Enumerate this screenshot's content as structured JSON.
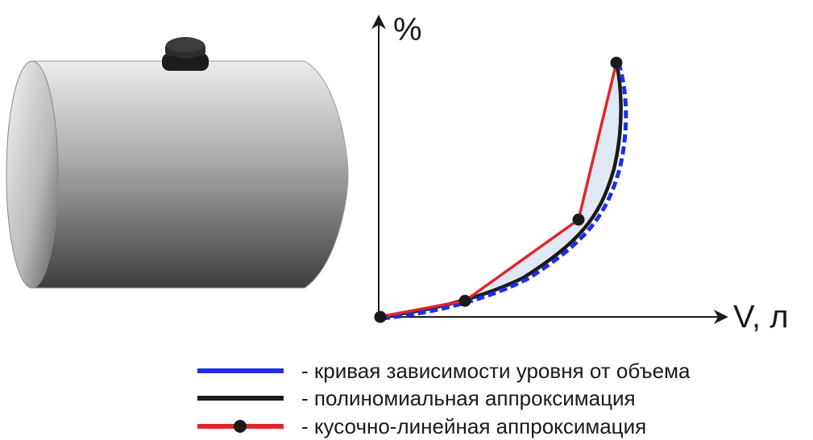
{
  "colors": {
    "level_curve": "#1e2fe6",
    "polynomial": "#1a1a1a",
    "piecewise": "#e0262b",
    "fill_between": "#dbe5f2",
    "tank_light": "#e6e6e6",
    "tank_dark": "#4a4a4a",
    "cap": "#2a2a2a"
  },
  "icons": {
    "tank": "horizontal-cylinder-tank-icon",
    "cap": "tank-filler-cap-icon"
  },
  "chart": {
    "y_axis_label": "%",
    "x_axis_label": "V, л"
  },
  "chart_data": {
    "type": "line",
    "xlabel": "V, л",
    "ylabel": "%",
    "series": [
      {
        "name": "кривая зависимости уровня от объема",
        "style": "dashed",
        "color": "#1e2fe6"
      },
      {
        "name": "полиномиальная аппроксимация",
        "style": "solid",
        "color": "#1a1a1a"
      },
      {
        "name": "кусочно-линейная аппроксимация",
        "style": "solid-with-markers",
        "color": "#e0262b"
      }
    ]
  },
  "legend": [
    {
      "text": "- кривая зависимости уровня от объема",
      "marker": false,
      "color": "#1e2fe6"
    },
    {
      "text": "- полиномиальная аппроксимация",
      "marker": false,
      "color": "#1a1a1a"
    },
    {
      "text": "- кусочно-линейная аппроксимация",
      "marker": true,
      "color": "#e0262b"
    }
  ]
}
